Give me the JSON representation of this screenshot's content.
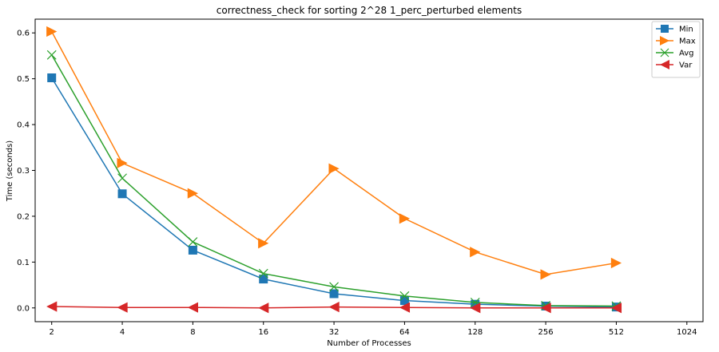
{
  "chart_data": {
    "type": "line",
    "title": "correctness_check for sorting 2^28 1_perc_perturbed elements",
    "xlabel": "Number of Processes",
    "ylabel": "Time (seconds)",
    "x_scale": "log2",
    "x": [
      2,
      4,
      8,
      16,
      32,
      64,
      128,
      256,
      512
    ],
    "xticks": [
      "2",
      "4",
      "8",
      "16",
      "32",
      "64",
      "128",
      "256",
      "512",
      "1024"
    ],
    "yticks": [
      "0.0",
      "0.1",
      "0.2",
      "0.3",
      "0.4",
      "0.5",
      "0.6"
    ],
    "xlim": [
      1.7,
      1200
    ],
    "ylim": [
      -0.03,
      0.63
    ],
    "grid": false,
    "legend_position": "top-right",
    "series": [
      {
        "name": "Min",
        "marker": "square",
        "color": "#1f77b4",
        "values": [
          0.502,
          0.249,
          0.126,
          0.063,
          0.031,
          0.016,
          0.008,
          0.004,
          0.002
        ]
      },
      {
        "name": "Max",
        "marker": "triangle-right",
        "color": "#ff7f0e",
        "values": [
          0.603,
          0.316,
          0.25,
          0.141,
          0.304,
          0.195,
          0.122,
          0.073,
          0.098
        ]
      },
      {
        "name": "Avg",
        "marker": "x",
        "color": "#2ca02c",
        "values": [
          0.552,
          0.283,
          0.144,
          0.075,
          0.046,
          0.026,
          0.012,
          0.005,
          0.004
        ]
      },
      {
        "name": "Var",
        "marker": "triangle-left",
        "color": "#d62728",
        "values": [
          0.003,
          0.001,
          0.001,
          0.0,
          0.002,
          0.001,
          0.0,
          0.0,
          0.0
        ]
      }
    ]
  }
}
